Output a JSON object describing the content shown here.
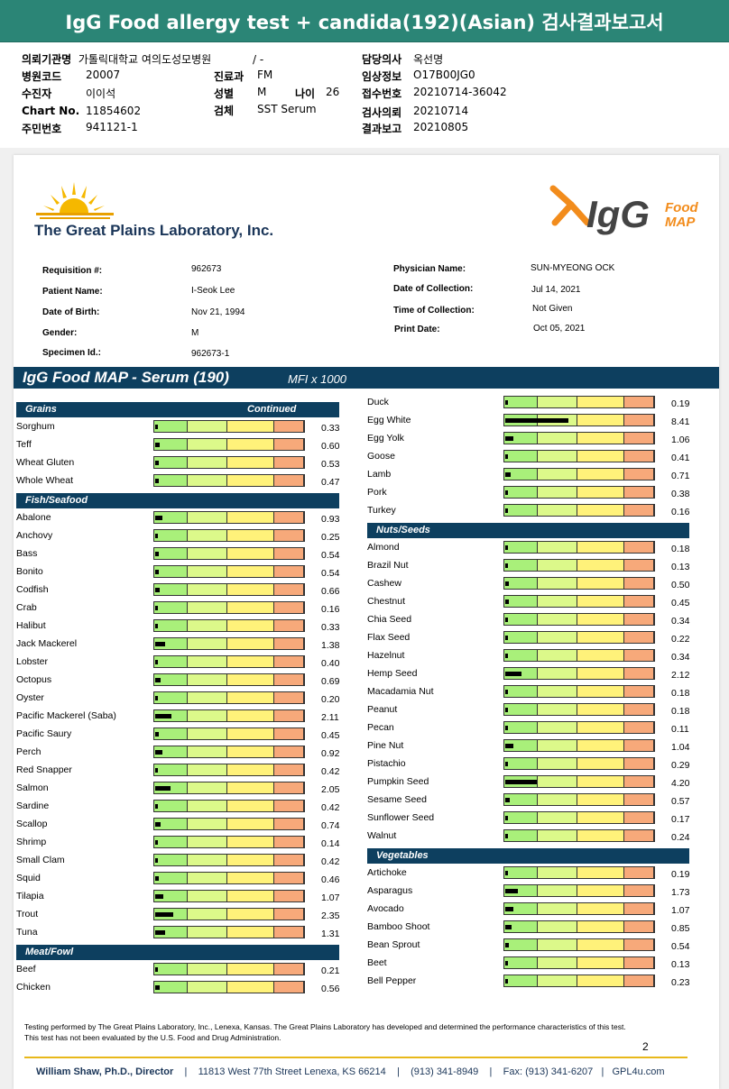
{
  "title": "IgG Food allergy test + candida(192)(Asian) 검사결과보고서",
  "report_header": [
    {
      "label": "의뢰기관명",
      "value": "가톨릭대학교 여의도성모병원",
      "extra": "/ -"
    },
    {
      "label": "병원코드",
      "value": "20007"
    },
    {
      "label": "수진자",
      "value": "이이석"
    },
    {
      "label": "Chart No.",
      "value": "11854602"
    },
    {
      "label": "주민번호",
      "value": "941121-1"
    },
    {
      "label": "진료과",
      "value": "FM"
    },
    {
      "label": "성별",
      "value": "M"
    },
    {
      "label": "나이",
      "value": "26"
    },
    {
      "label": "검체",
      "value": "SST Serum"
    },
    {
      "label": "담당의사",
      "value": "옥선명"
    },
    {
      "label": "임상정보",
      "value": "O17B00JG0"
    },
    {
      "label": "접수번호",
      "value": "20210714-36042"
    },
    {
      "label": "검사의뢰",
      "value": "20210714"
    },
    {
      "label": "결과보고",
      "value": "20210805"
    }
  ],
  "lab_name": "The Great Plains Laboratory, Inc.",
  "product_logo": {
    "main": "IgG",
    "sub1": "Food",
    "sub2": "MAP"
  },
  "patient_info": {
    "requisition_label": "Requisition #:",
    "requisition": "962673",
    "patient_name_label": "Patient Name:",
    "patient_name": "I-Seok Lee",
    "dob_label": "Date of Birth:",
    "dob": "Nov 21, 1994",
    "gender_label": "Gender:",
    "gender": "M",
    "specimen_label": "Specimen Id.:",
    "specimen": "962673-1",
    "physician_label": "Physician Name:",
    "physician": "SUN-MYEONG OCK",
    "collection_date_label": "Date of Collection:",
    "collection_date": "Jul 14, 2021",
    "collection_time_label": "Time of Collection:",
    "collection_time": "Not Given",
    "print_date_label": "Print Date:",
    "print_date": "Oct 05, 2021"
  },
  "section": {
    "title": "IgG Food MAP - Serum (190)",
    "units": "MFI x 1000"
  },
  "left_column": [
    {
      "category": "Grains",
      "continued": "Continued",
      "items": [
        {
          "name": "Sorghum",
          "value": 0.33
        },
        {
          "name": "Teff",
          "value": 0.6
        },
        {
          "name": "Wheat Gluten",
          "value": 0.53
        },
        {
          "name": "Whole Wheat",
          "value": 0.47
        }
      ]
    },
    {
      "category": "Fish/Seafood",
      "items": [
        {
          "name": "Abalone",
          "value": 0.93
        },
        {
          "name": "Anchovy",
          "value": 0.25
        },
        {
          "name": "Bass",
          "value": 0.54
        },
        {
          "name": "Bonito",
          "value": 0.54
        },
        {
          "name": "Codfish",
          "value": 0.66
        },
        {
          "name": "Crab",
          "value": 0.16
        },
        {
          "name": "Halibut",
          "value": 0.33
        },
        {
          "name": "Jack Mackerel",
          "value": 1.38
        },
        {
          "name": "Lobster",
          "value": 0.4
        },
        {
          "name": "Octopus",
          "value": 0.69
        },
        {
          "name": "Oyster",
          "value": 0.2
        },
        {
          "name": "Pacific Mackerel (Saba)",
          "value": 2.11
        },
        {
          "name": "Pacific Saury",
          "value": 0.45
        },
        {
          "name": "Perch",
          "value": 0.92
        },
        {
          "name": "Red Snapper",
          "value": 0.42
        },
        {
          "name": "Salmon",
          "value": 2.05
        },
        {
          "name": "Sardine",
          "value": 0.42
        },
        {
          "name": "Scallop",
          "value": 0.74
        },
        {
          "name": "Shrimp",
          "value": 0.14
        },
        {
          "name": "Small Clam",
          "value": 0.42
        },
        {
          "name": "Squid",
          "value": 0.46
        },
        {
          "name": "Tilapia",
          "value": 1.07
        },
        {
          "name": "Trout",
          "value": 2.35
        },
        {
          "name": "Tuna",
          "value": 1.31
        }
      ]
    },
    {
      "category": "Meat/Fowl",
      "items": [
        {
          "name": "Beef",
          "value": 0.21
        },
        {
          "name": "Chicken",
          "value": 0.56
        }
      ]
    }
  ],
  "right_column": [
    {
      "category": "",
      "items": [
        {
          "name": "Duck",
          "value": 0.19
        },
        {
          "name": "Egg White",
          "value": 8.41
        },
        {
          "name": "Egg Yolk",
          "value": 1.06
        },
        {
          "name": "Goose",
          "value": 0.41
        },
        {
          "name": "Lamb",
          "value": 0.71
        },
        {
          "name": "Pork",
          "value": 0.38
        },
        {
          "name": "Turkey",
          "value": 0.16
        }
      ]
    },
    {
      "category": "Nuts/Seeds",
      "items": [
        {
          "name": "Almond",
          "value": 0.18
        },
        {
          "name": "Brazil Nut",
          "value": 0.13
        },
        {
          "name": "Cashew",
          "value": 0.5
        },
        {
          "name": "Chestnut",
          "value": 0.45
        },
        {
          "name": "Chia Seed",
          "value": 0.34
        },
        {
          "name": "Flax Seed",
          "value": 0.22
        },
        {
          "name": "Hazelnut",
          "value": 0.34
        },
        {
          "name": "Hemp Seed",
          "value": 2.12
        },
        {
          "name": "Macadamia Nut",
          "value": 0.18
        },
        {
          "name": "Peanut",
          "value": 0.18
        },
        {
          "name": "Pecan",
          "value": 0.11
        },
        {
          "name": "Pine Nut",
          "value": 1.04
        },
        {
          "name": "Pistachio",
          "value": 0.29
        },
        {
          "name": "Pumpkin Seed",
          "value": 4.2
        },
        {
          "name": "Sesame Seed",
          "value": 0.57
        },
        {
          "name": "Sunflower Seed",
          "value": 0.17
        },
        {
          "name": "Walnut",
          "value": 0.24
        }
      ]
    },
    {
      "category": "Vegetables",
      "items": [
        {
          "name": "Artichoke",
          "value": 0.19
        },
        {
          "name": "Asparagus",
          "value": 1.73
        },
        {
          "name": "Avocado",
          "value": 1.07
        },
        {
          "name": "Bamboo Shoot",
          "value": 0.85
        },
        {
          "name": "Bean Sprout",
          "value": 0.54
        },
        {
          "name": "Beet",
          "value": 0.13
        },
        {
          "name": "Bell Pepper",
          "value": 0.23
        }
      ]
    }
  ],
  "footer": {
    "disclaimer": "Testing performed by The Great Plains Laboratory, Inc., Lenexa, Kansas.  The Great Plains Laboratory has developed and determined the performance characteristics of this test.  This test has not been evaluated by the U.S. Food and Drug Administration.",
    "page": "2",
    "director": "William Shaw, Ph.D., Director",
    "address": "11813 West 77th Street Lenexa, KS 66214",
    "phone": "(913) 341-8949",
    "fax": "Fax: (913) 341-6207",
    "web": "GPL4u.com"
  },
  "colors": {
    "header_bar": "#2b8576",
    "section_bar": "#0d3f5f",
    "zone_low": "#a9f07a",
    "zone_mild": "#dcf98a",
    "zone_moderate": "#fff27a",
    "zone_high": "#f7a97a",
    "brand_orange": "#f28c1c"
  }
}
